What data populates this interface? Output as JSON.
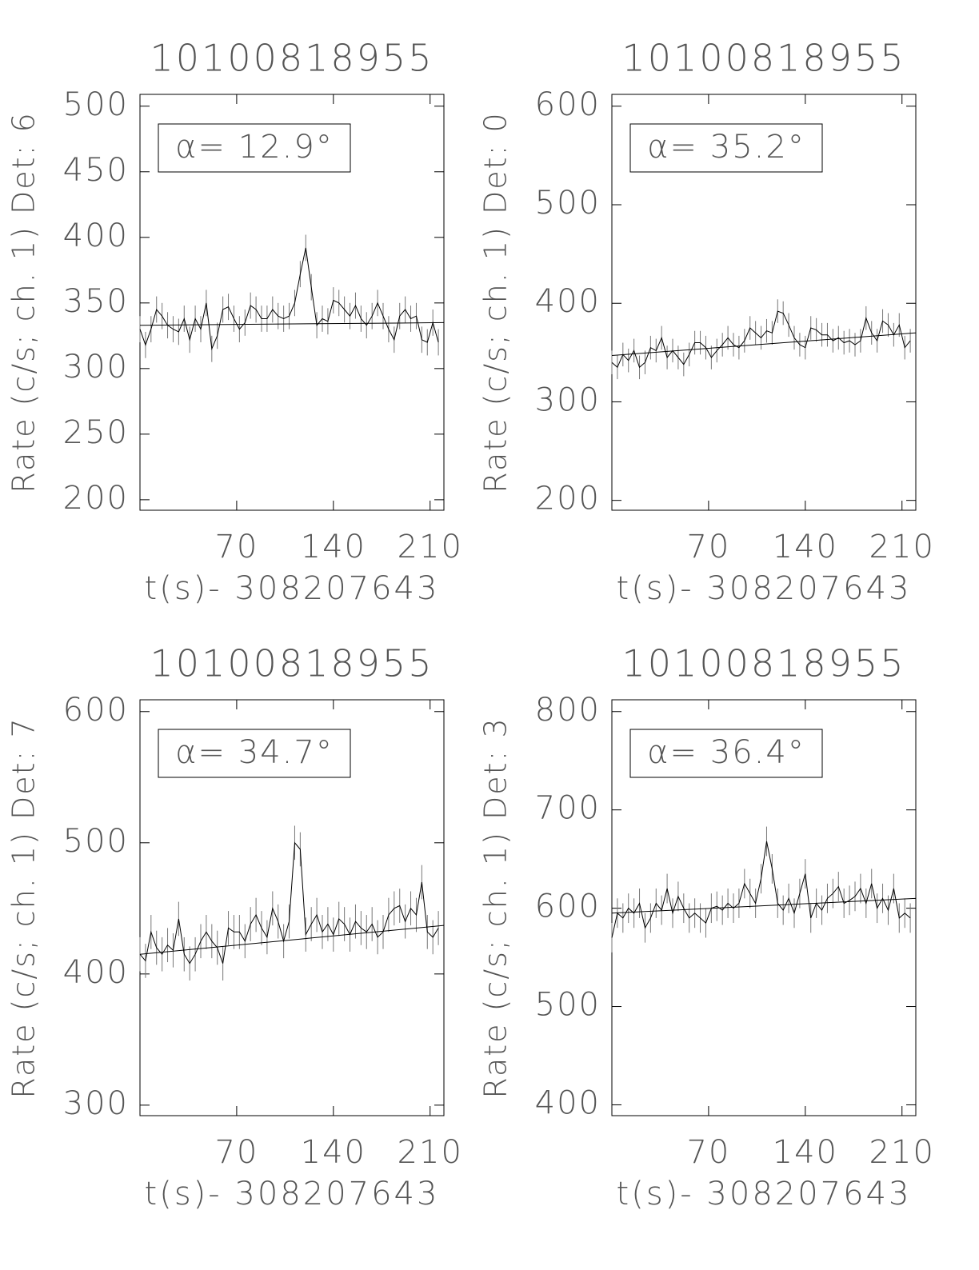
{
  "chart_data": [
    {
      "type": "line",
      "title": "10100818955",
      "y_label": "Rate (c/s; ch. 1) Det: 6",
      "x_label": "t(s)- 308207643",
      "annotation": "α= 12.9°",
      "xlim": [
        0,
        220
      ],
      "xticks": [
        70,
        140,
        210
      ],
      "ylim": [
        192,
        509
      ],
      "yticks": [
        200,
        250,
        300,
        350,
        400,
        450,
        500
      ],
      "x": [
        0,
        4,
        8,
        12,
        16,
        20,
        24,
        28,
        32,
        36,
        40,
        44,
        48,
        52,
        56,
        60,
        64,
        68,
        72,
        76,
        80,
        84,
        88,
        92,
        96,
        100,
        104,
        108,
        112,
        116,
        120,
        124,
        128,
        132,
        136,
        140,
        144,
        148,
        152,
        156,
        160,
        164,
        168,
        172,
        176,
        180,
        184,
        188,
        192,
        196,
        200,
        204,
        208,
        212,
        216
      ],
      "series": [
        {
          "color": "#000000",
          "error": 10,
          "values": [
            330,
            318,
            330,
            345,
            340,
            333,
            330,
            328,
            338,
            322,
            338,
            330,
            350,
            315,
            325,
            345,
            347,
            338,
            330,
            335,
            348,
            345,
            338,
            338,
            345,
            340,
            338,
            340,
            350,
            372,
            392,
            362,
            333,
            338,
            336,
            352,
            350,
            345,
            340,
            348,
            338,
            333,
            340,
            350,
            340,
            330,
            322,
            340,
            345,
            338,
            340,
            322,
            320,
            335,
            320
          ]
        }
      ],
      "fit": {
        "x": [
          0,
          220
        ],
        "values": [
          333,
          335
        ]
      }
    },
    {
      "type": "line",
      "title": "10100818955",
      "y_label": "Rate (c/s; ch. 1) Det: 0",
      "x_label": "t(s)- 308207643",
      "annotation": "α= 35.2°",
      "xlim": [
        0,
        220
      ],
      "xticks": [
        70,
        140,
        210
      ],
      "ylim": [
        190,
        612
      ],
      "yticks": [
        200,
        300,
        400,
        500,
        600
      ],
      "x": [
        0,
        4,
        8,
        12,
        16,
        20,
        24,
        28,
        32,
        36,
        40,
        44,
        48,
        52,
        56,
        60,
        64,
        68,
        72,
        76,
        80,
        84,
        88,
        92,
        96,
        100,
        104,
        108,
        112,
        116,
        120,
        124,
        128,
        132,
        136,
        140,
        144,
        148,
        152,
        156,
        160,
        164,
        168,
        172,
        176,
        180,
        184,
        188,
        192,
        196,
        200,
        204,
        208,
        212,
        216
      ],
      "series": [
        {
          "color": "#000000",
          "error": 12,
          "values": [
            340,
            335,
            348,
            342,
            352,
            335,
            340,
            355,
            352,
            365,
            345,
            352,
            345,
            338,
            348,
            360,
            360,
            355,
            345,
            352,
            358,
            365,
            358,
            355,
            362,
            375,
            370,
            365,
            372,
            370,
            392,
            390,
            378,
            365,
            358,
            355,
            375,
            373,
            368,
            368,
            362,
            365,
            360,
            362,
            358,
            362,
            385,
            370,
            362,
            382,
            378,
            368,
            378,
            355,
            362
          ]
        }
      ],
      "fit": {
        "x": [
          0,
          220
        ],
        "values": [
          347,
          370
        ]
      }
    },
    {
      "type": "line",
      "title": "10100818955",
      "y_label": "Rate (c/s; ch. 1) Det: 7",
      "x_label": "t(s)- 308207643",
      "annotation": "α= 34.7°",
      "xlim": [
        0,
        220
      ],
      "xticks": [
        70,
        140,
        210
      ],
      "ylim": [
        292,
        609
      ],
      "yticks": [
        300,
        400,
        500,
        600
      ],
      "x": [
        0,
        4,
        8,
        12,
        16,
        20,
        24,
        28,
        32,
        36,
        40,
        44,
        48,
        52,
        56,
        60,
        64,
        68,
        72,
        76,
        80,
        84,
        88,
        92,
        96,
        100,
        104,
        108,
        112,
        116,
        120,
        124,
        128,
        132,
        136,
        140,
        144,
        148,
        152,
        156,
        160,
        164,
        168,
        172,
        176,
        180,
        184,
        188,
        192,
        196,
        200,
        204,
        208,
        212,
        216
      ],
      "series": [
        {
          "color": "#000000",
          "error": 13,
          "values": [
            415,
            410,
            432,
            420,
            415,
            422,
            418,
            442,
            415,
            408,
            415,
            425,
            432,
            425,
            420,
            408,
            435,
            432,
            432,
            425,
            438,
            445,
            435,
            428,
            450,
            440,
            425,
            440,
            500,
            495,
            430,
            438,
            445,
            432,
            438,
            430,
            442,
            438,
            430,
            440,
            435,
            432,
            438,
            428,
            432,
            445,
            450,
            452,
            440,
            450,
            445,
            470,
            432,
            428,
            435
          ]
        }
      ],
      "fit": {
        "x": [
          0,
          220
        ],
        "values": [
          415,
          437
        ]
      }
    },
    {
      "type": "line",
      "title": "10100818955",
      "y_label": "Rate (c/s; ch. 1) Det: 3",
      "x_label": "t(s)- 308207643",
      "annotation": "α= 36.4°",
      "xlim": [
        0,
        220
      ],
      "xticks": [
        70,
        140,
        210
      ],
      "ylim": [
        389,
        812
      ],
      "yticks": [
        400,
        500,
        600,
        700,
        800
      ],
      "x": [
        0,
        4,
        8,
        12,
        16,
        20,
        24,
        28,
        32,
        36,
        40,
        44,
        48,
        52,
        56,
        60,
        64,
        68,
        72,
        76,
        80,
        84,
        88,
        92,
        96,
        100,
        104,
        108,
        112,
        116,
        120,
        124,
        128,
        132,
        136,
        140,
        144,
        148,
        152,
        156,
        160,
        164,
        168,
        172,
        176,
        180,
        184,
        188,
        192,
        196,
        200,
        204,
        208,
        212,
        216
      ],
      "series": [
        {
          "color": "#000000",
          "error": 15,
          "values": [
            570,
            595,
            590,
            600,
            595,
            605,
            580,
            590,
            605,
            598,
            620,
            595,
            612,
            600,
            590,
            595,
            590,
            585,
            600,
            602,
            598,
            605,
            600,
            605,
            625,
            615,
            605,
            630,
            668,
            640,
            605,
            598,
            610,
            595,
            615,
            635,
            590,
            605,
            598,
            610,
            615,
            622,
            605,
            608,
            612,
            620,
            605,
            625,
            600,
            610,
            598,
            620,
            590,
            595,
            590
          ]
        }
      ],
      "fit": {
        "x": [
          0,
          220
        ],
        "values": [
          595,
          610
        ]
      }
    }
  ]
}
